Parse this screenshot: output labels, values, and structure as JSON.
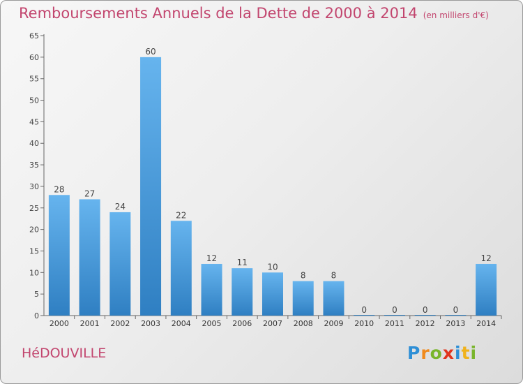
{
  "title": "Remboursements Annuels de la Dette de 2000 à 2014",
  "unit": "(en milliers d'€)",
  "commune": "HéDOUVILLE",
  "logo": {
    "letters": [
      "P",
      "r",
      "o",
      "x",
      "i",
      "t",
      "i"
    ],
    "colors": [
      "#2e8fd6",
      "#f08a1c",
      "#79b52b",
      "#e0341d",
      "#2e8fd6",
      "#f0b21c",
      "#79b52b"
    ]
  },
  "colors": {
    "bar_light": "#66b4ee",
    "bar_dark": "#2f7fc2",
    "title": "#c2456e"
  },
  "chart_data": {
    "type": "bar",
    "categories": [
      "2000",
      "2001",
      "2002",
      "2003",
      "2004",
      "2005",
      "2006",
      "2007",
      "2008",
      "2009",
      "2010",
      "2011",
      "2012",
      "2013",
      "2014"
    ],
    "values": [
      28,
      27,
      24,
      60,
      22,
      12,
      11,
      10,
      8,
      8,
      0,
      0,
      0,
      0,
      12
    ],
    "ylim": [
      0,
      65
    ],
    "yticks": [
      0,
      5,
      10,
      15,
      20,
      25,
      30,
      35,
      40,
      45,
      50,
      55,
      60,
      65
    ],
    "grid": false
  }
}
